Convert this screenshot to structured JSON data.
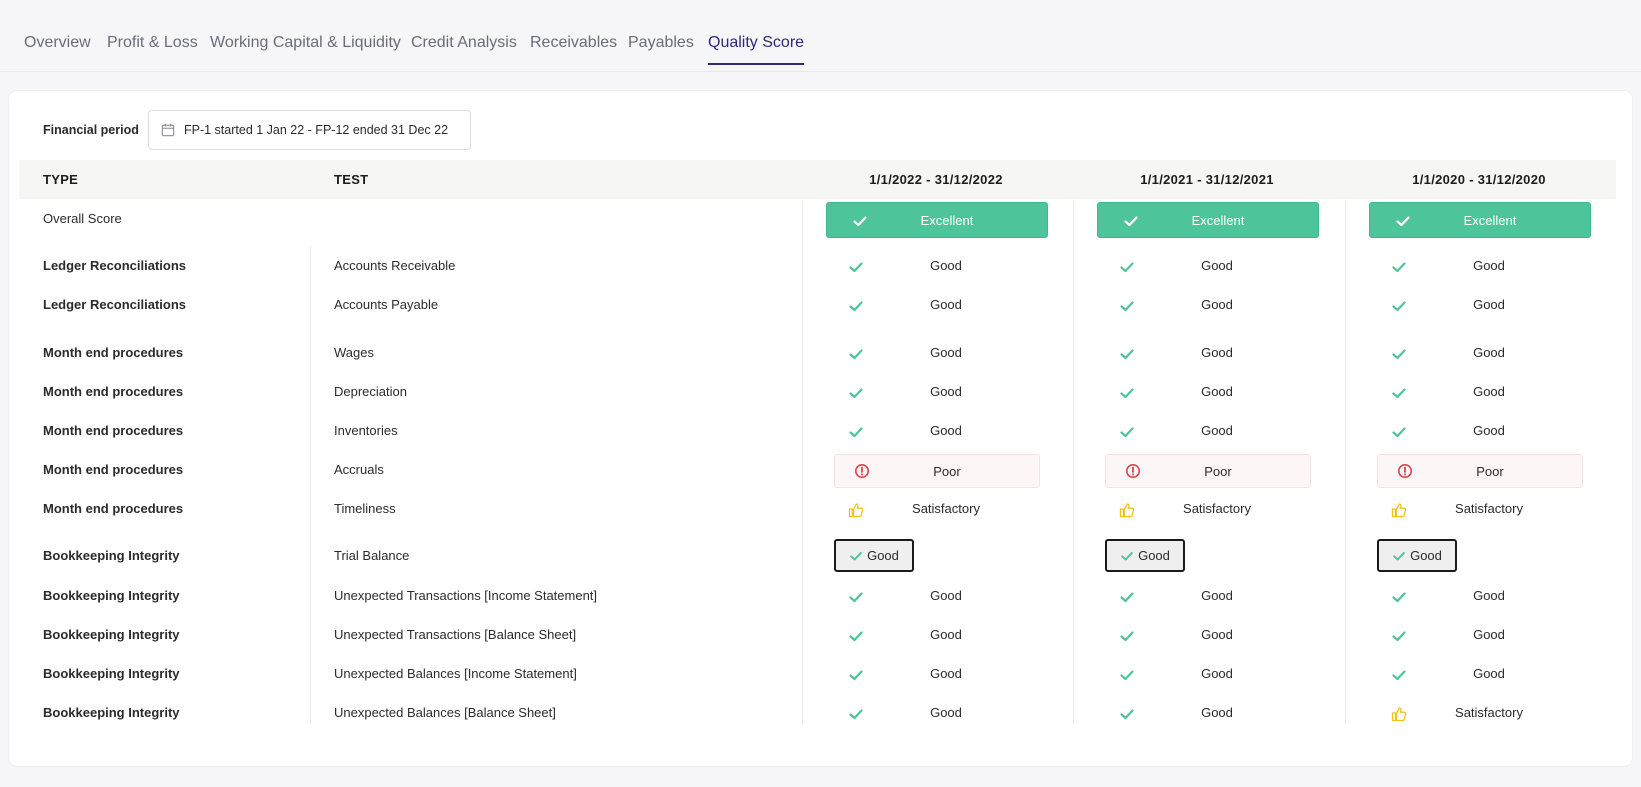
{
  "tabs": [
    {
      "label": "Overview",
      "active": false
    },
    {
      "label": "Profit & Loss",
      "active": false
    },
    {
      "label": "Working Capital & Liquidity",
      "active": false
    },
    {
      "label": "Credit Analysis",
      "active": false
    },
    {
      "label": "Receivables",
      "active": false
    },
    {
      "label": "Payables",
      "active": false
    },
    {
      "label": "Quality Score",
      "active": true
    }
  ],
  "financial_period": {
    "label": "Financial period",
    "value": "FP-1 started 1 Jan 22 - FP-12 ended 31 Dec 22",
    "icon": "calendar-icon"
  },
  "table": {
    "headers": {
      "type": "TYPE",
      "test": "TEST",
      "periods": [
        "1/1/2022 - 31/12/2022",
        "1/1/2021 - 31/12/2021",
        "1/1/2020 - 31/12/2020"
      ]
    },
    "overall": {
      "type": "Overall Score",
      "scores": [
        "Excellent",
        "Excellent",
        "Excellent"
      ]
    },
    "rows": [
      {
        "type": "Ledger Reconciliations",
        "test": "Accounts Receivable",
        "scores": [
          "Good",
          "Good",
          "Good"
        ]
      },
      {
        "type": "Ledger Reconciliations",
        "test": "Accounts Payable",
        "scores": [
          "Good",
          "Good",
          "Good"
        ]
      },
      {
        "type": "Month end procedures",
        "test": "Wages",
        "scores": [
          "Good",
          "Good",
          "Good"
        ]
      },
      {
        "type": "Month end procedures",
        "test": "Depreciation",
        "scores": [
          "Good",
          "Good",
          "Good"
        ]
      },
      {
        "type": "Month end procedures",
        "test": "Inventories",
        "scores": [
          "Good",
          "Good",
          "Good"
        ]
      },
      {
        "type": "Month end procedures",
        "test": "Accruals",
        "scores": [
          "Poor",
          "Poor",
          "Poor"
        ]
      },
      {
        "type": "Month end procedures",
        "test": "Timeliness",
        "scores": [
          "Satisfactory",
          "Satisfactory",
          "Satisfactory"
        ]
      },
      {
        "type": "Bookkeeping Integrity",
        "test": "Trial Balance",
        "scores": [
          "Good",
          "Good",
          "Good"
        ],
        "button": true
      },
      {
        "type": "Bookkeeping Integrity",
        "test": "Unexpected Transactions [Income Statement]",
        "scores": [
          "Good",
          "Good",
          "Good"
        ]
      },
      {
        "type": "Bookkeeping Integrity",
        "test": "Unexpected Transactions [Balance Sheet]",
        "scores": [
          "Good",
          "Good",
          "Good"
        ]
      },
      {
        "type": "Bookkeeping Integrity",
        "test": "Unexpected Balances [Income Statement]",
        "scores": [
          "Good",
          "Good",
          "Good"
        ]
      },
      {
        "type": "Bookkeeping Integrity",
        "test": "Unexpected Balances [Balance Sheet]",
        "scores": [
          "Good",
          "Good",
          "Satisfactory"
        ]
      }
    ]
  },
  "colors": {
    "good": "#4dc49a",
    "poor": "#e0424a",
    "satisfactory": "#f2c21b",
    "accent": "#2d2a7a"
  }
}
